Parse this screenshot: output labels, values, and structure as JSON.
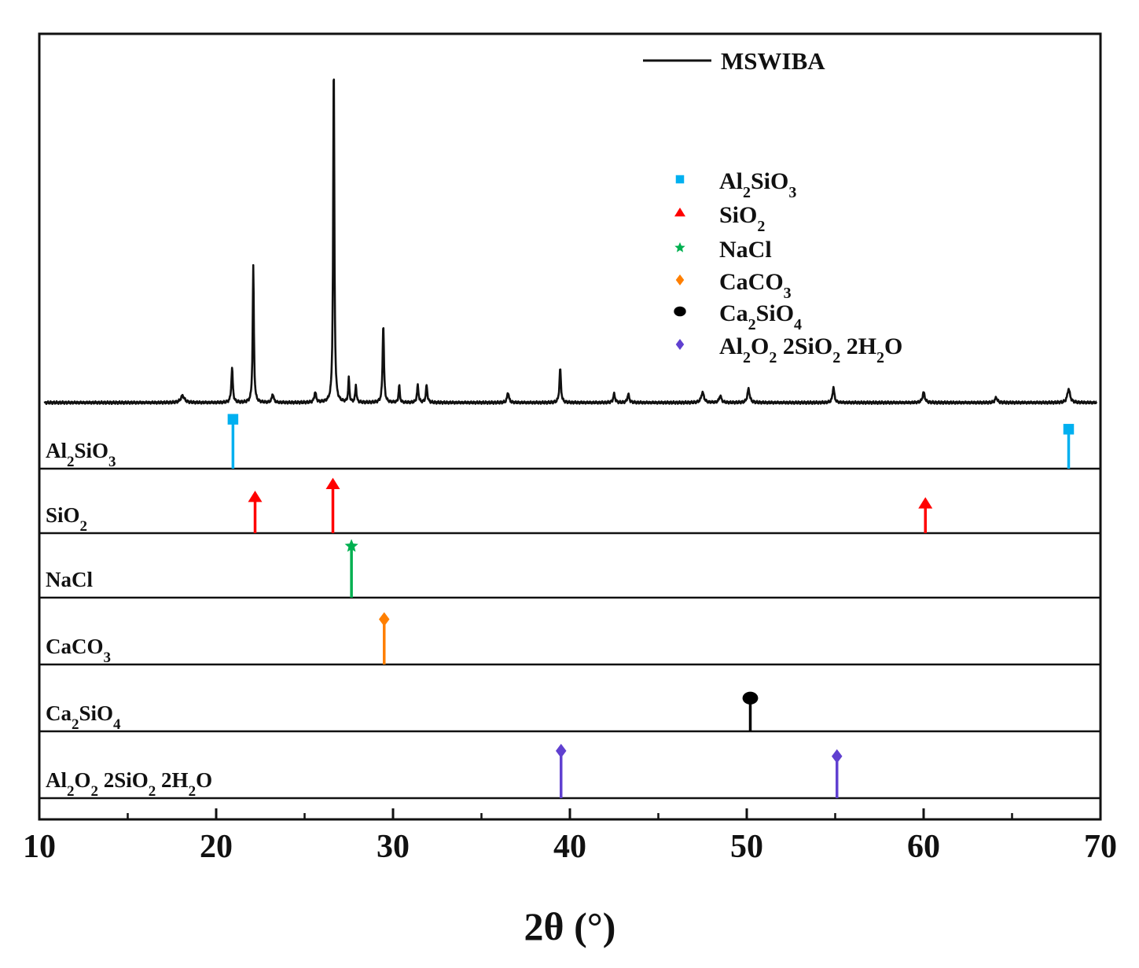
{
  "chart_data": {
    "type": "line",
    "xlabel": "2θ (°)",
    "xlim": [
      10,
      70
    ],
    "xticks": [
      "10",
      "20",
      "30",
      "40",
      "50",
      "60",
      "70"
    ],
    "grid": false,
    "main_series": {
      "name": "MSWIBA",
      "color": "#111111",
      "baseline": 0.02,
      "peaks": [
        {
          "x": 18.1,
          "y": 0.02,
          "w": 0.25
        },
        {
          "x": 20.9,
          "y": 0.1,
          "w": 0.1
        },
        {
          "x": 22.1,
          "y": 0.4,
          "w": 0.08
        },
        {
          "x": 23.2,
          "y": 0.025,
          "w": 0.12
        },
        {
          "x": 25.6,
          "y": 0.03,
          "w": 0.12
        },
        {
          "x": 26.65,
          "y": 1.0,
          "w": 0.08
        },
        {
          "x": 27.5,
          "y": 0.07,
          "w": 0.08
        },
        {
          "x": 27.9,
          "y": 0.05,
          "w": 0.08
        },
        {
          "x": 29.45,
          "y": 0.23,
          "w": 0.09
        },
        {
          "x": 30.35,
          "y": 0.05,
          "w": 0.08
        },
        {
          "x": 31.4,
          "y": 0.05,
          "w": 0.1
        },
        {
          "x": 31.9,
          "y": 0.05,
          "w": 0.1
        },
        {
          "x": 36.5,
          "y": 0.03,
          "w": 0.12
        },
        {
          "x": 39.45,
          "y": 0.1,
          "w": 0.1
        },
        {
          "x": 42.5,
          "y": 0.025,
          "w": 0.12
        },
        {
          "x": 43.3,
          "y": 0.025,
          "w": 0.12
        },
        {
          "x": 47.5,
          "y": 0.03,
          "w": 0.18
        },
        {
          "x": 48.5,
          "y": 0.02,
          "w": 0.15
        },
        {
          "x": 50.1,
          "y": 0.04,
          "w": 0.15
        },
        {
          "x": 54.9,
          "y": 0.045,
          "w": 0.12
        },
        {
          "x": 60.0,
          "y": 0.03,
          "w": 0.15
        },
        {
          "x": 64.1,
          "y": 0.015,
          "w": 0.15
        },
        {
          "x": 68.2,
          "y": 0.04,
          "w": 0.18
        }
      ]
    },
    "series": [
      {
        "name": "Al2SiO3",
        "label_main": "Al",
        "sub1": "2",
        "mid": "SiO",
        "sub2": "3",
        "tail": "",
        "color": "#00b0f0",
        "marker": "square",
        "positions": [
          20.95,
          68.2
        ],
        "heights": [
          0.7,
          0.55
        ]
      },
      {
        "name": "SiO2",
        "label_main": "SiO",
        "sub1": "2",
        "mid": "",
        "sub2": "",
        "tail": "",
        "color": "#ff0000",
        "marker": "triangle",
        "positions": [
          22.2,
          26.6,
          60.1
        ],
        "heights": [
          0.5,
          0.7,
          0.4
        ]
      },
      {
        "name": "NaCl",
        "label_main": "NaCl",
        "sub1": "",
        "mid": "",
        "sub2": "",
        "tail": "",
        "color": "#00b050",
        "marker": "star",
        "positions": [
          27.65
        ],
        "heights": [
          0.75
        ]
      },
      {
        "name": "CaCO3",
        "label_main": "CaCO",
        "sub1": "3",
        "mid": "",
        "sub2": "",
        "tail": "",
        "color": "#ff7f00",
        "marker": "diamond",
        "positions": [
          29.5
        ],
        "heights": [
          0.63
        ]
      },
      {
        "name": "Ca2SiO4",
        "label_main": "Ca",
        "sub1": "2",
        "mid": "SiO",
        "sub2": "4",
        "tail": "",
        "color": "#000000",
        "marker": "circle",
        "positions": [
          50.2
        ],
        "heights": [
          0.45
        ]
      },
      {
        "name": "Al2O2 2SiO2 2H2O",
        "label_main": "Al",
        "sub1": "2",
        "mid": "O",
        "sub2": "2",
        "tail": " 2SiO₂ 2H₂O",
        "color": "#6040d0",
        "marker": "diamond",
        "positions": [
          39.5,
          55.1
        ],
        "heights": [
          0.66,
          0.58
        ]
      }
    ]
  }
}
